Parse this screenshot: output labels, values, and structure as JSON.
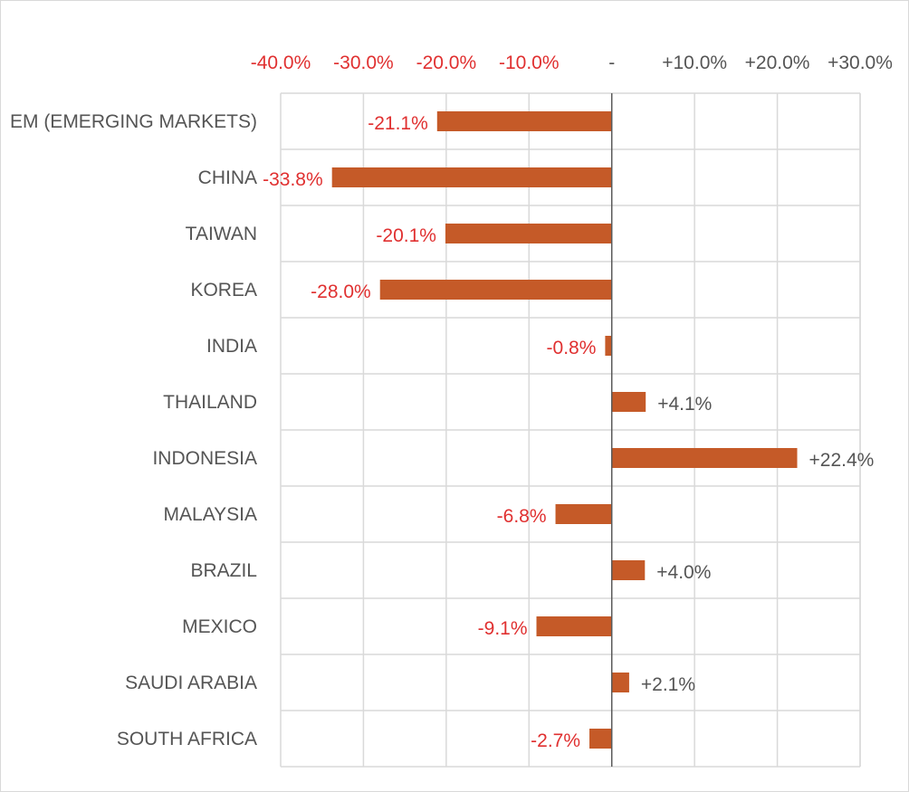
{
  "chart_data": {
    "type": "bar",
    "orientation": "horizontal",
    "title": "",
    "xlabel": "",
    "ylabel": "",
    "categories": [
      "EM (EMERGING MARKETS)",
      "CHINA",
      "TAIWAN",
      "KOREA",
      "INDIA",
      "THAILAND",
      "INDONESIA",
      "MALAYSIA",
      "BRAZIL",
      "MEXICO",
      "SAUDI ARABIA",
      "SOUTH AFRICA"
    ],
    "values": [
      -21.1,
      -33.8,
      -20.1,
      -28.0,
      -0.8,
      4.1,
      22.4,
      -6.8,
      4.0,
      -9.1,
      2.1,
      -2.7
    ],
    "data_labels": [
      "-21.1%",
      "-33.8%",
      "-20.1%",
      "-28.0%",
      "-0.8%",
      "+4.1%",
      "+22.4%",
      "-6.8%",
      "+4.0%",
      "-9.1%",
      "+2.1%",
      "-2.7%"
    ],
    "xlim": [
      -40,
      30
    ],
    "x_ticks": [
      -40,
      -30,
      -20,
      -10,
      0,
      10,
      20,
      30
    ],
    "x_tick_labels": [
      "-40.0%",
      "-30.0%",
      "-20.0%",
      "-10.0%",
      "-",
      "+10.0%",
      "+20.0%",
      "+30.0%"
    ],
    "x_axis_position": "top",
    "grid": true,
    "legend": "none"
  },
  "colors": {
    "bar": "#c55a28",
    "negative_label": "#e03030",
    "positive_label": "#555555",
    "zero_tick_label": "#555555",
    "grid": "#d9d9d9",
    "zero_line": "#595959"
  }
}
